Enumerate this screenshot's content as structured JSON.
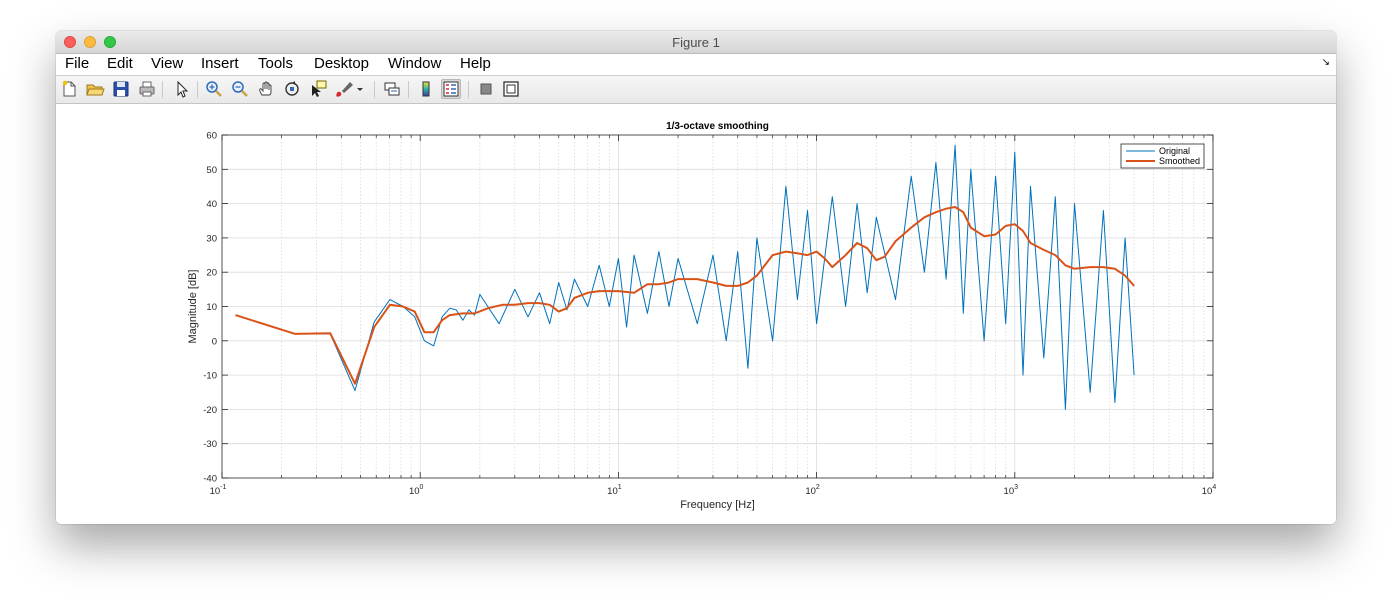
{
  "window": {
    "title": "Figure 1"
  },
  "menu": {
    "items": [
      "File",
      "Edit",
      "View",
      "Insert",
      "Tools",
      "Desktop",
      "Window",
      "Help"
    ],
    "overflow": "↘"
  },
  "toolbar": {
    "buttons": [
      {
        "name": "new-figure-icon"
      },
      {
        "name": "open-file-icon"
      },
      {
        "name": "save-icon"
      },
      {
        "name": "print-icon"
      },
      {
        "name": "pointer-icon"
      },
      {
        "name": "zoom-in-icon"
      },
      {
        "name": "zoom-out-icon"
      },
      {
        "name": "pan-hand-icon"
      },
      {
        "name": "rotate-3d-icon"
      },
      {
        "name": "data-cursor-icon"
      },
      {
        "name": "brush-icon"
      },
      {
        "name": "link-plot-icon"
      },
      {
        "name": "colorbar-icon"
      },
      {
        "name": "legend-icon"
      },
      {
        "name": "hide-plot-tools-icon"
      },
      {
        "name": "show-plot-tools-icon"
      }
    ]
  },
  "chart_data": {
    "type": "line",
    "title": "1/3-octave smoothing",
    "xlabel": "Frequency [Hz]",
    "ylabel": "Magnitude [dB]",
    "xscale": "log",
    "xlim": [
      0.1,
      10000
    ],
    "ylim": [
      -40,
      60
    ],
    "xticks": [
      {
        "base": "10",
        "exp": "-1"
      },
      {
        "base": "10",
        "exp": "0"
      },
      {
        "base": "10",
        "exp": "1"
      },
      {
        "base": "10",
        "exp": "2"
      },
      {
        "base": "10",
        "exp": "3"
      },
      {
        "base": "10",
        "exp": "4"
      }
    ],
    "yticks": [
      "-40",
      "-30",
      "-20",
      "-10",
      "0",
      "10",
      "20",
      "30",
      "40",
      "50",
      "60"
    ],
    "grid": true,
    "legend": {
      "placement": "top-right",
      "entries": [
        "Original",
        "Smoothed"
      ]
    },
    "colors": {
      "original": "#0072bd",
      "smoothed": "#d95319"
    },
    "series": [
      {
        "name": "Original",
        "x": [
          0.117,
          0.234,
          0.352,
          0.469,
          0.586,
          0.703,
          0.82,
          0.938,
          1.05,
          1.17,
          1.29,
          1.41,
          1.52,
          1.64,
          1.76,
          1.88,
          2.0,
          2.5,
          3.0,
          3.5,
          4.0,
          4.5,
          5.0,
          5.5,
          6.0,
          7.0,
          8.0,
          9.0,
          10,
          11,
          12,
          14,
          16,
          18,
          20,
          25,
          30,
          35,
          40,
          45,
          50,
          60,
          70,
          80,
          90,
          100,
          120,
          140,
          160,
          180,
          200,
          250,
          300,
          350,
          400,
          450,
          500,
          550,
          600,
          700,
          800,
          900,
          1000,
          1100,
          1200,
          1400,
          1600,
          1800,
          2000,
          2400,
          2800,
          3200,
          3600,
          4000
        ],
        "y": [
          7.5,
          2.0,
          2.0,
          -14.5,
          5.5,
          12.0,
          10.0,
          7.0,
          0.0,
          -1.5,
          7.0,
          9.5,
          9.0,
          6.0,
          9.0,
          7.5,
          13.5,
          5.0,
          15.0,
          7.0,
          14.0,
          5.0,
          17.0,
          9.0,
          18.0,
          10.0,
          22.0,
          10.0,
          24.0,
          4.0,
          25.0,
          8.0,
          26.0,
          10.0,
          24.0,
          5.0,
          25.0,
          0.0,
          26.0,
          -8.0,
          30.0,
          0.0,
          45.0,
          12.0,
          38.0,
          5.0,
          42.0,
          10.0,
          40.0,
          14.0,
          36.0,
          12.0,
          48.0,
          20.0,
          52.0,
          18.0,
          57.0,
          8.0,
          50.0,
          0.0,
          48.0,
          5.0,
          55.0,
          -10.0,
          45.0,
          -5.0,
          42.0,
          -20.0,
          40.0,
          -15.0,
          38.0,
          -18.0,
          30.0,
          -10.0
        ]
      },
      {
        "name": "Smoothed",
        "x": [
          0.117,
          0.234,
          0.352,
          0.469,
          0.586,
          0.703,
          0.82,
          0.938,
          1.05,
          1.17,
          1.29,
          1.41,
          1.64,
          1.88,
          2.2,
          2.6,
          3.0,
          3.5,
          4.0,
          4.5,
          5.0,
          5.5,
          6.0,
          7.0,
          8.0,
          9.0,
          10,
          12,
          14,
          16,
          18,
          20,
          25,
          30,
          35,
          40,
          45,
          50,
          60,
          70,
          80,
          90,
          100,
          110,
          120,
          140,
          160,
          180,
          200,
          220,
          250,
          300,
          350,
          400,
          450,
          500,
          550,
          600,
          700,
          800,
          900,
          1000,
          1100,
          1200,
          1400,
          1600,
          1800,
          2000,
          2400,
          2800,
          3200,
          3600,
          4000
        ],
        "y": [
          7.5,
          2.0,
          2.2,
          -12.5,
          4.0,
          10.5,
          10.0,
          8.5,
          2.5,
          2.5,
          6.0,
          7.5,
          8.0,
          8.0,
          9.5,
          10.5,
          10.5,
          11.0,
          11.0,
          10.5,
          8.5,
          9.5,
          12.5,
          14.0,
          14.5,
          14.5,
          14.5,
          14.0,
          16.5,
          16.5,
          17.0,
          18.0,
          18.0,
          17.0,
          16.0,
          16.0,
          17.0,
          19.0,
          25.0,
          26.0,
          25.5,
          25.0,
          26.0,
          24.0,
          21.5,
          25.0,
          28.5,
          27.0,
          23.5,
          24.5,
          29.0,
          33.0,
          36.0,
          37.5,
          38.5,
          39.0,
          37.5,
          33.0,
          30.5,
          31.0,
          33.5,
          34.0,
          32.0,
          28.5,
          26.5,
          25.0,
          22.0,
          21.0,
          21.5,
          21.5,
          21.0,
          19.0,
          16.0
        ]
      }
    ]
  }
}
